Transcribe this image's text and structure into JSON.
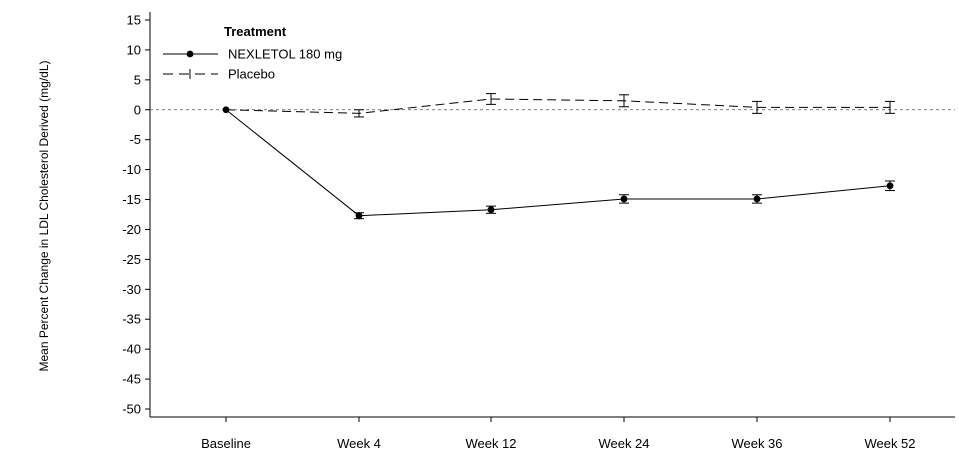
{
  "chart_data": {
    "type": "line",
    "categories": [
      "Baseline",
      "Week 4",
      "Week 12",
      "Week 24",
      "Week 36",
      "Week 52"
    ],
    "ylabel": "Mean Percent Change in LDL Cholesterol Derived (mg/dL)",
    "ylim": [
      -50,
      15
    ],
    "yticks": [
      15,
      10,
      5,
      0,
      -5,
      -10,
      -15,
      -20,
      -25,
      -30,
      -35,
      -40,
      -45,
      -50
    ],
    "ytick_labels": [
      "15",
      "10",
      "5",
      "0",
      "-5",
      "-10",
      "-15",
      "-20",
      "-25",
      "-30",
      "-35",
      "-40",
      "-45",
      "-50"
    ],
    "reference_line": 0,
    "grid": false,
    "legend": {
      "title": "Treatment",
      "position": "top-left"
    },
    "series": [
      {
        "name": "NEXLETOL 180 mg",
        "style": "solid",
        "marker": "circle",
        "color": "#000000",
        "values": [
          0,
          -17.7,
          -16.7,
          -14.9,
          -14.9,
          -12.7
        ],
        "error": [
          0,
          0.5,
          0.6,
          0.7,
          0.7,
          0.8
        ]
      },
      {
        "name": "Placebo",
        "style": "dashed",
        "marker": "plus",
        "color": "#000000",
        "values": [
          0,
          -0.6,
          1.8,
          1.5,
          0.4,
          0.4
        ],
        "error": [
          0,
          0.6,
          0.9,
          1.0,
          1.0,
          1.0
        ]
      }
    ]
  }
}
